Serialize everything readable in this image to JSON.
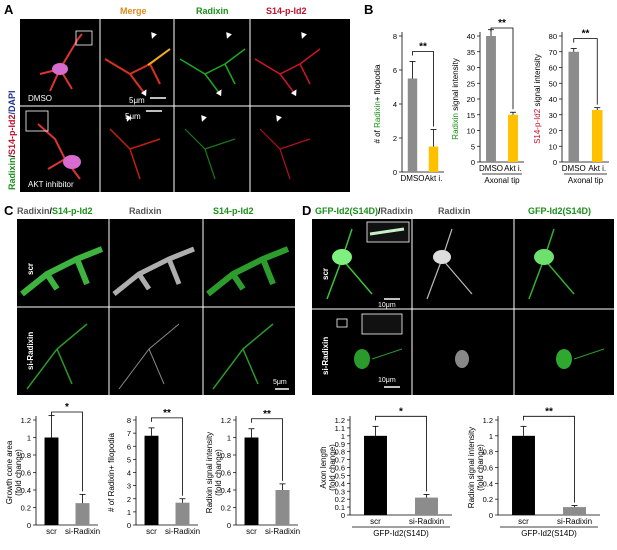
{
  "panels": {
    "A": "A",
    "B": "B",
    "C": "C",
    "D": "D"
  },
  "panel_a": {
    "side_label_radixin": "Radixin",
    "side_label_slash1": "/",
    "side_label_pid2": "S14-p-Id2",
    "side_label_dapi": "/DAPI",
    "col_merge": "Merge",
    "col_radixin": "Radixin",
    "col_pid2": "S14-p-Id2",
    "row1_label": "DMSO",
    "row2_label": "AKT inhibitor",
    "scale1": "5μm",
    "scale2": "5μm",
    "colors": {
      "merge": "#e08a1e",
      "radixin": "#1a8f1a",
      "pid2": "#c0102a",
      "dapi": "#1f2f8f"
    }
  },
  "panel_c": {
    "title_radixin": "Radixin",
    "title_slash": "/",
    "title_pid2": "S14-p-Id2",
    "col_radixin": "Radixin",
    "col_pid2": "S14-p-Id2",
    "row1": "scr",
    "row2": "si-Radixin",
    "scale": "5μm"
  },
  "panel_d": {
    "title_gfp": "GFP-Id2(S14D)",
    "title_slash": "/",
    "title_radixin": "Radixin",
    "col_radixin": "Radixin",
    "col_gfp": "GFP-Id2(S14D)",
    "row1": "scr",
    "row2": "si-Radixin",
    "scale1": "10μm",
    "scale2": "10μm"
  },
  "chart_data": [
    {
      "id": "B1",
      "type": "bar",
      "categories": [
        "DMSO",
        "Akt i."
      ],
      "values": [
        5.5,
        1.5
      ],
      "errors": [
        1.0,
        1.0
      ],
      "ylim": [
        0,
        8
      ],
      "yticks": [
        0,
        2,
        4,
        6,
        8
      ],
      "ylabel": "# of Radixin+ filopodia",
      "ylabel_parts": [
        "# of ",
        "Radixin",
        "+ filopodia"
      ],
      "xgroup": "",
      "significance": "**",
      "colors": [
        "#8c8c8c",
        "#ffc000"
      ]
    },
    {
      "id": "B2",
      "type": "bar",
      "categories": [
        "DMSO",
        "Akt i."
      ],
      "values": [
        40,
        15
      ],
      "errors": [
        2,
        0.8
      ],
      "ylim": [
        0,
        40
      ],
      "yticks": [
        0,
        5,
        10,
        15,
        20,
        25,
        30,
        35,
        40
      ],
      "ylabel": "Radixin signal intensity",
      "ylabel_parts": [
        "",
        "Radixin",
        " signal intensity"
      ],
      "xgroup": "Axonal tip",
      "significance": "**",
      "colors": [
        "#8c8c8c",
        "#ffc000"
      ]
    },
    {
      "id": "B3",
      "type": "bar",
      "categories": [
        "DMSO",
        "Akt i."
      ],
      "values": [
        70,
        33
      ],
      "errors": [
        2,
        1.5
      ],
      "ylim": [
        0,
        80
      ],
      "yticks": [
        0,
        10,
        20,
        30,
        40,
        50,
        60,
        70,
        80
      ],
      "ylabel": "S14-p-Id2 signal intensity",
      "ylabel_parts": [
        "",
        "S14-p-Id2",
        " signal intensity"
      ],
      "xgroup": "Axonal tip",
      "significance": "**",
      "colors": [
        "#8c8c8c",
        "#ffc000"
      ]
    },
    {
      "id": "C1",
      "type": "bar",
      "categories": [
        "scr",
        "si-Radixin"
      ],
      "values": [
        1.0,
        0.25
      ],
      "errors": [
        0.25,
        0.1
      ],
      "ylim": [
        0,
        1.2
      ],
      "yticks": [
        0,
        0.2,
        0.4,
        0.6,
        0.8,
        1,
        1.2
      ],
      "ylabel": "Growth cone area (fold change)",
      "ylabel_parts": [
        "Growth cone area",
        "(fold change)"
      ],
      "xgroup": "",
      "significance": "*",
      "colors": [
        "#000000",
        "#8c8c8c"
      ]
    },
    {
      "id": "C2",
      "type": "bar",
      "categories": [
        "scr",
        "si-Radixin"
      ],
      "values": [
        6.8,
        1.7
      ],
      "errors": [
        0.6,
        0.3
      ],
      "ylim": [
        0,
        8
      ],
      "yticks": [
        0,
        1,
        2,
        3,
        4,
        5,
        6,
        7,
        8
      ],
      "ylabel": "# of Radixin+ filopodia",
      "ylabel_parts": [
        "# of Radixin+ filopodia"
      ],
      "xgroup": "",
      "significance": "**",
      "colors": [
        "#000000",
        "#8c8c8c"
      ]
    },
    {
      "id": "C3",
      "type": "bar",
      "categories": [
        "scr",
        "si-Radixin"
      ],
      "values": [
        1.0,
        0.4
      ],
      "errors": [
        0.1,
        0.07
      ],
      "ylim": [
        0,
        1.2
      ],
      "yticks": [
        0,
        0.2,
        0.4,
        0.6,
        0.8,
        1,
        1.2
      ],
      "ylabel": "Radixin signal intensity (fold change)",
      "ylabel_parts": [
        "Radixin signal intensity",
        "(fold change)"
      ],
      "xgroup": "",
      "significance": "**",
      "colors": [
        "#000000",
        "#8c8c8c"
      ]
    },
    {
      "id": "D1",
      "type": "bar",
      "categories": [
        "scr",
        "si-Radixin"
      ],
      "values": [
        1.0,
        0.22
      ],
      "errors": [
        0.12,
        0.04
      ],
      "ylim": [
        0,
        1.2
      ],
      "yticks": [
        0,
        0.1,
        0.2,
        0.3,
        0.4,
        0.5,
        0.6,
        0.7,
        0.8,
        0.9,
        1,
        1.1,
        1.2
      ],
      "ylabel": "Axon length (fold change)",
      "ylabel_parts": [
        "Axon length",
        "(fold change)"
      ],
      "xgroup": "GFP-Id2(S14D)",
      "significance": "*",
      "colors": [
        "#000000",
        "#8c8c8c"
      ]
    },
    {
      "id": "D2",
      "type": "bar",
      "categories": [
        "scr",
        "si-Radixin"
      ],
      "values": [
        1.0,
        0.1
      ],
      "errors": [
        0.12,
        0.02
      ],
      "ylim": [
        0,
        1.2
      ],
      "yticks": [
        0,
        0.2,
        0.4,
        0.6,
        0.8,
        1,
        1.2
      ],
      "ylabel": "Radixin signal intensity (fold change)",
      "ylabel_parts": [
        "Radixin signal intensity",
        "(fold change)"
      ],
      "xgroup": "GFP-Id2(S14D)",
      "significance": "**",
      "colors": [
        "#000000",
        "#8c8c8c"
      ]
    }
  ]
}
